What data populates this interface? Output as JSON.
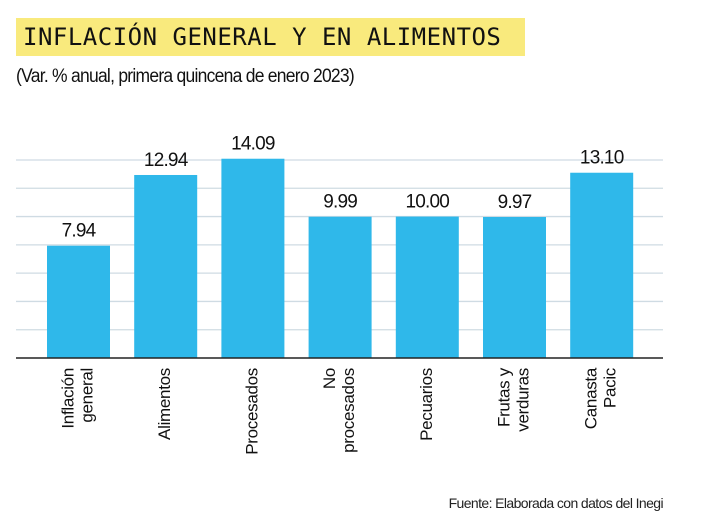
{
  "header": {
    "title": "INFLACIÓN GENERAL Y EN ALIMENTOS",
    "subtitle": "(Var. % anual, primera quincena de enero 2023)"
  },
  "footer": {
    "source": "Fuente: Elaborada con datos del Inegi"
  },
  "colors": {
    "bar": "#2fb8ea",
    "title_highlight": "#f9ea7d",
    "grid": "#cfdbe3"
  },
  "chart_data": {
    "type": "bar",
    "title": "INFLACIÓN GENERAL Y EN ALIMENTOS",
    "subtitle": "(Var. % anual, primera quincena de enero 2023)",
    "xlabel": "",
    "ylabel": "",
    "categories": [
      [
        "Inflación",
        "general"
      ],
      [
        "Alimentos"
      ],
      [
        "Procesados"
      ],
      [
        "No",
        "procesados"
      ],
      [
        "Pecuarios"
      ],
      [
        "Frutas y",
        "verduras"
      ],
      [
        "Canasta",
        "Pacic"
      ]
    ],
    "values": [
      7.94,
      12.94,
      14.09,
      9.99,
      10.0,
      9.97,
      13.1
    ],
    "value_labels": [
      "7.94",
      "12.94",
      "14.09",
      "9.99",
      "10.00",
      "9.97",
      "13.10"
    ],
    "ylim": [
      0,
      14
    ],
    "gridlines": [
      2,
      4,
      6,
      8,
      10,
      12,
      14
    ],
    "grid": true,
    "y_tick_labels_visible": false,
    "legend": "none",
    "source": "Fuente: Elaborada con datos del Inegi"
  }
}
